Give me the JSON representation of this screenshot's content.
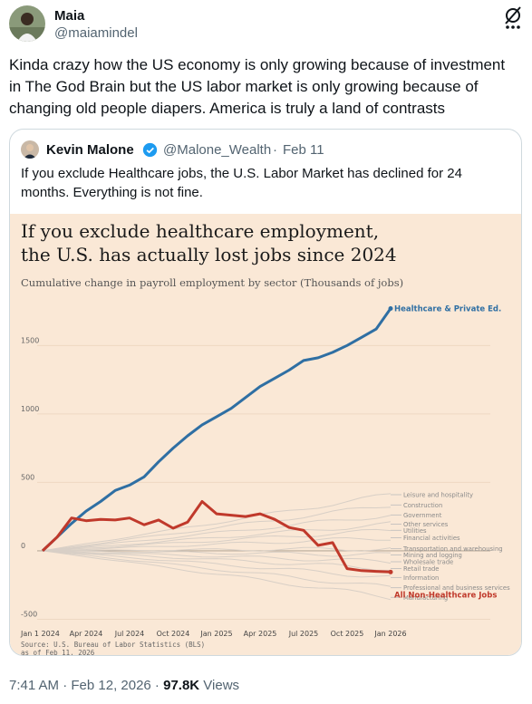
{
  "post": {
    "author_name": "Maia",
    "author_handle": "@maiamindel",
    "text": "Kinda crazy how the US economy is only growing because of investment in The God Brain but the US labor market is only growing because of changing old people diapers. America is truly a land of contrasts"
  },
  "quote": {
    "author_name": "Kevin Malone",
    "author_handle": "@Malone_Wealth",
    "separator": "·",
    "date": "Feb 11",
    "text": "If you exclude Healthcare jobs, the U.S. Labor Market has declined for 24 months. Everything is not fine."
  },
  "footer": {
    "time": "7:41 AM · Feb 12, 2026 · ",
    "views_count": "97.8K",
    "views_label": " Views"
  },
  "chart_data": {
    "type": "line",
    "title_line1": "If you exclude healthcare employment,",
    "title_line2": "the U.S. has actually lost jobs since 2024",
    "subtitle": "Cumulative change in payroll employment by sector (Thousands of jobs)",
    "x_ticks": [
      "Jan 1 2024",
      "Apr 2024",
      "Jul 2024",
      "Oct 2024",
      "Jan 2025",
      "Apr 2025",
      "Jul 2025",
      "Oct 2025",
      "Jan 2026"
    ],
    "y_ticks": [
      "1500",
      "1000",
      "500",
      "0",
      "-500"
    ],
    "ylim": [
      -550,
      1800
    ],
    "source_line1": "Source: U.S. Bureau of Labor Statistics (BLS)",
    "source_line2": "as of Feb 11, 2026",
    "months": [
      "2024-01",
      "2024-02",
      "2024-03",
      "2024-04",
      "2024-05",
      "2024-06",
      "2024-07",
      "2024-08",
      "2024-09",
      "2024-10",
      "2024-11",
      "2024-12",
      "2025-01",
      "2025-02",
      "2025-03",
      "2025-04",
      "2025-05",
      "2025-06",
      "2025-07",
      "2025-08",
      "2025-09",
      "2025-10",
      "2025-11",
      "2025-12",
      "2026-01"
    ],
    "series": [
      {
        "name": "Healthcare & Private Ed.",
        "color": "#2f6fa3",
        "values": [
          0,
          100,
          200,
          290,
          360,
          440,
          480,
          540,
          650,
          750,
          840,
          920,
          980,
          1040,
          1120,
          1200,
          1260,
          1320,
          1390,
          1410,
          1450,
          1500,
          1560,
          1620,
          1770
        ]
      },
      {
        "name": "All Non-Healthcare Jobs",
        "color": "#c0392b",
        "values": [
          0,
          100,
          240,
          220,
          230,
          225,
          240,
          190,
          225,
          165,
          210,
          360,
          270,
          260,
          250,
          270,
          230,
          170,
          150,
          40,
          60,
          -130,
          -145,
          -150,
          -155
        ]
      }
    ],
    "sector_labels": [
      "Leisure and hospitality",
      "Construction",
      "Government",
      "Other services",
      "Utilities",
      "Financial activities",
      "Transportation and warehousing",
      "Mining and logging",
      "Wholesale trade",
      "Retail trade",
      "Information",
      "Professional and business services",
      "Manufacturing"
    ],
    "sector_end_values": [
      410,
      335,
      262,
      195,
      150,
      95,
      15,
      -30,
      -80,
      -130,
      -195,
      -270,
      -340
    ]
  }
}
